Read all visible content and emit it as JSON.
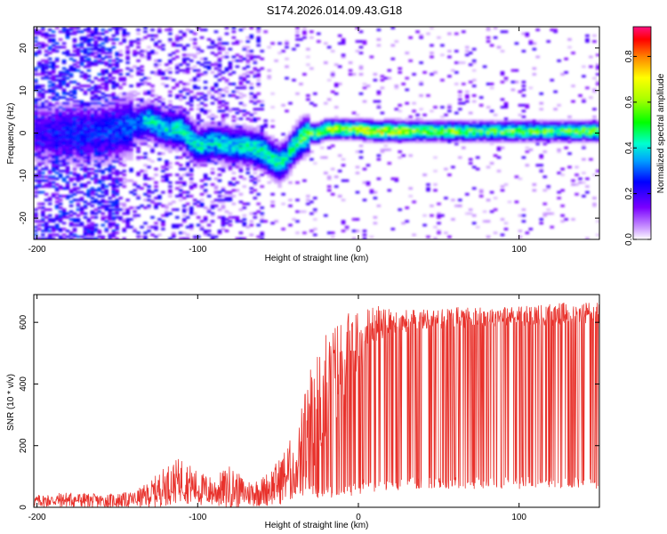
{
  "chart_data": [
    {
      "type": "heatmap",
      "title": "S174.2026.014.09.43.G18",
      "xlabel": "Height of straight line (km)",
      "ylabel": "Frequency (Hz)",
      "xlim": [
        -202,
        150
      ],
      "ylim": [
        -25,
        25
      ],
      "x_ticks": [
        -200,
        -100,
        0,
        100
      ],
      "y_ticks": [
        -20,
        -10,
        0,
        10,
        20
      ],
      "colorbar": {
        "label": "Normalized spectral amplitude",
        "range": [
          0,
          0.93
        ],
        "ticks": [
          0.0,
          0.2,
          0.4,
          0.6,
          0.8
        ]
      },
      "ridge": {
        "x": [
          -200,
          -180,
          -160,
          -140,
          -130,
          -120,
          -110,
          -100,
          -90,
          -80,
          -70,
          -60,
          -50,
          -45,
          -40,
          -35,
          -30,
          -25,
          -20,
          -15,
          -10,
          -5,
          0,
          10,
          20,
          40,
          60,
          80,
          100,
          120,
          150
        ],
        "y": [
          0,
          0,
          0,
          2,
          3,
          1,
          1,
          -3,
          -2,
          -3,
          -3,
          -4,
          -7,
          -6,
          -3,
          -1,
          0,
          0,
          1,
          1,
          1,
          1,
          1,
          0.5,
          0.5,
          0.5,
          0.5,
          0.5,
          0.5,
          0.5,
          0.5
        ],
        "amplitude": [
          0.2,
          0.25,
          0.25,
          0.3,
          0.4,
          0.4,
          0.45,
          0.4,
          0.4,
          0.4,
          0.4,
          0.45,
          0.45,
          0.4,
          0.45,
          0.5,
          0.5,
          0.55,
          0.6,
          0.6,
          0.55,
          0.55,
          0.6,
          0.65,
          0.65,
          0.55,
          0.55,
          0.5,
          0.55,
          0.5,
          0.55
        ]
      }
    },
    {
      "type": "line",
      "title": "",
      "xlabel": "Height of straight line (km)",
      "ylabel": "SNR (10 * v/v)",
      "xlim": [
        -202,
        150
      ],
      "ylim": [
        0,
        690
      ],
      "x_ticks": [
        -200,
        -100,
        0,
        100
      ],
      "y_ticks": [
        0,
        200,
        400,
        600
      ],
      "color": "#e8312b",
      "series": [
        {
          "name": "SNR",
          "x": [
            -200,
            -180,
            -160,
            -140,
            -130,
            -120,
            -110,
            -100,
            -90,
            -80,
            -70,
            -60,
            -50,
            -40,
            -35,
            -30,
            -25,
            -20,
            -15,
            -10,
            -5,
            0,
            5,
            10,
            20,
            30,
            40,
            50,
            60,
            80,
            100,
            120,
            150
          ],
          "y": [
            20,
            25,
            20,
            25,
            40,
            70,
            90,
            60,
            50,
            65,
            45,
            50,
            80,
            130,
            200,
            260,
            320,
            380,
            420,
            480,
            520,
            540,
            560,
            600,
            600,
            605,
            610,
            610,
            615,
            620,
            620,
            625,
            630
          ],
          "y_low": [
            5,
            5,
            5,
            10,
            15,
            20,
            25,
            15,
            15,
            15,
            15,
            15,
            25,
            30,
            30,
            35,
            30,
            35,
            30,
            30,
            35,
            40,
            60,
            40,
            50,
            60,
            60,
            60,
            60,
            60,
            60,
            60,
            60
          ],
          "y_high": [
            45,
            55,
            50,
            60,
            100,
            150,
            170,
            130,
            110,
            160,
            100,
            110,
            170,
            260,
            400,
            500,
            560,
            620,
            640,
            660,
            660,
            680,
            660,
            680,
            650,
            650,
            650,
            650,
            660,
            660,
            660,
            670,
            680
          ]
        }
      ]
    }
  ]
}
